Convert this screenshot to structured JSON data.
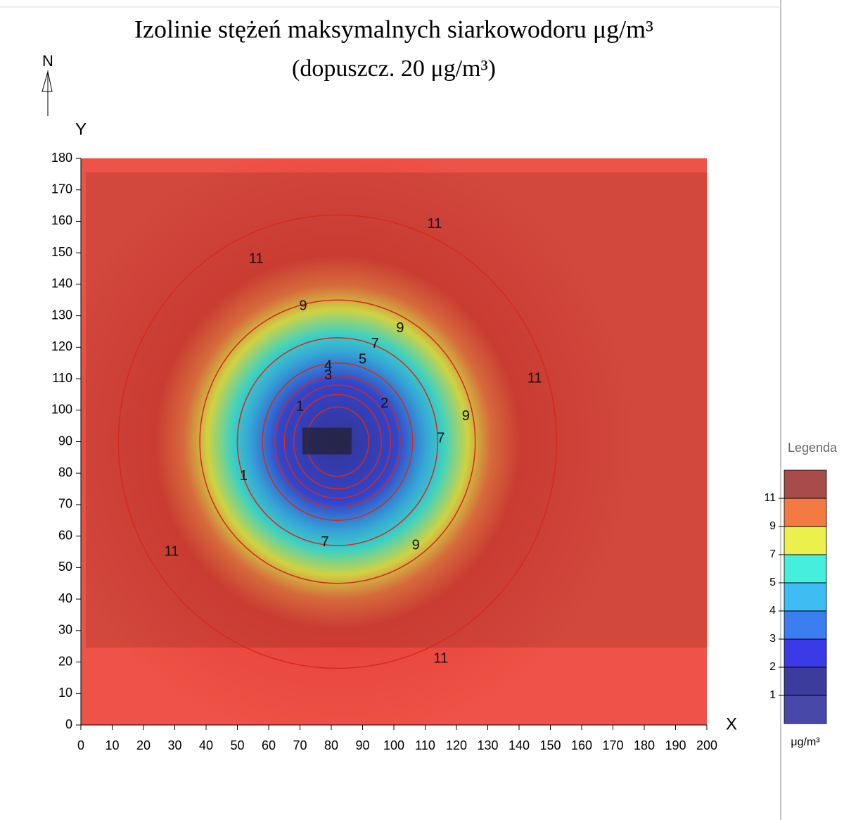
{
  "chart_data": {
    "type": "contour",
    "title": "Izolinie stężeń maksymalnych siarkowodoru μg/m³",
    "subtitle": "(dopuszcz. 20 μg/m³)",
    "north": "N",
    "x_label": "X",
    "y_label": "Y",
    "xlim": [
      0,
      200
    ],
    "xticks": [
      0,
      10,
      20,
      30,
      40,
      50,
      60,
      70,
      80,
      90,
      100,
      110,
      120,
      130,
      140,
      150,
      160,
      170,
      180,
      190,
      200
    ],
    "ylim": [
      0,
      180
    ],
    "yticks": [
      0,
      10,
      20,
      30,
      40,
      50,
      60,
      70,
      80,
      90,
      100,
      110,
      120,
      130,
      140,
      150,
      160,
      170,
      180
    ],
    "source": {
      "x": 82,
      "y": 90
    },
    "contour_color": "#d8281e",
    "contours": [
      {
        "level": 11,
        "rx": 70,
        "ry": 72
      },
      {
        "level": 9,
        "rx": 44,
        "ry": 45
      },
      {
        "level": 7,
        "rx": 32,
        "ry": 33
      },
      {
        "level": 5,
        "rx": 24,
        "ry": 25
      },
      {
        "level": 4,
        "rx": 20,
        "ry": 21
      },
      {
        "level": 3,
        "rx": 17,
        "ry": 18
      },
      {
        "level": 2,
        "rx": 14,
        "ry": 15
      },
      {
        "level": 1,
        "rx": 10,
        "ry": 11
      }
    ],
    "contour_labels": [
      {
        "value": 11,
        "x": 56,
        "y": 148
      },
      {
        "value": 11,
        "x": 113,
        "y": 159
      },
      {
        "value": 11,
        "x": 145,
        "y": 110
      },
      {
        "value": 11,
        "x": 29,
        "y": 55
      },
      {
        "value": 11,
        "x": 115,
        "y": 21
      },
      {
        "value": 9,
        "x": 71,
        "y": 133
      },
      {
        "value": 9,
        "x": 102,
        "y": 126
      },
      {
        "value": 9,
        "x": 123,
        "y": 98
      },
      {
        "value": 9,
        "x": 107,
        "y": 57
      },
      {
        "value": 7,
        "x": 94,
        "y": 121
      },
      {
        "value": 7,
        "x": 115,
        "y": 91
      },
      {
        "value": 7,
        "x": 78,
        "y": 58
      },
      {
        "value": 5,
        "x": 90,
        "y": 116
      },
      {
        "value": 4,
        "x": 79,
        "y": 114
      },
      {
        "value": 3,
        "x": 79,
        "y": 111
      },
      {
        "value": 2,
        "x": 97,
        "y": 102
      },
      {
        "value": 1,
        "x": 70,
        "y": 101
      },
      {
        "value": 1,
        "x": 52,
        "y": 79
      }
    ],
    "legend": {
      "title": "Legenda",
      "unit": "μg/m³",
      "ticks": [
        11,
        9,
        7,
        5,
        4,
        3,
        2,
        1
      ],
      "colors": [
        "#a84b4b",
        "#f47a44",
        "#ecf04c",
        "#46eedd",
        "#3dbdf4",
        "#3a7ef0",
        "#3a3ae6",
        "#3c3c9c",
        "#4848a8"
      ]
    }
  }
}
